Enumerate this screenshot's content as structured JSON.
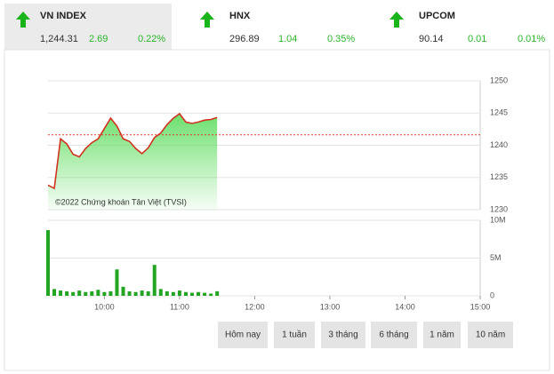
{
  "tabs": [
    {
      "name": "VN INDEX",
      "value": "1,244.31",
      "change": "2.69",
      "percent": "0.22%"
    },
    {
      "name": "HNX",
      "value": "296.89",
      "change": "1.04",
      "percent": "0.35%"
    },
    {
      "name": "UPCOM",
      "value": "90.14",
      "change": "0.01",
      "percent": "0.01%"
    }
  ],
  "chart_data": [
    {
      "type": "area",
      "annotation": "©2022 Chứng khoán Tân Việt (TVSI)",
      "x": [
        555,
        560,
        565,
        570,
        575,
        580,
        585,
        590,
        595,
        600,
        605,
        610,
        615,
        620,
        625,
        630,
        635,
        640,
        645,
        650,
        655,
        660,
        665,
        670,
        675,
        680,
        685,
        690
      ],
      "series": [
        {
          "color": "#d0321e",
          "fill": "#5cdc5c",
          "values": [
            1233.8,
            1233.3,
            1241.0,
            1240.2,
            1238.6,
            1238.2,
            1239.5,
            1240.4,
            1241.0,
            1242.6,
            1244.2,
            1243.0,
            1241.0,
            1240.6,
            1239.5,
            1238.7,
            1239.6,
            1241.2,
            1241.9,
            1243.2,
            1244.2,
            1244.9,
            1243.6,
            1243.4,
            1243.6,
            1243.9,
            1244.0,
            1244.31
          ]
        }
      ],
      "reference_line": 1241.62,
      "reference_color": "#e03a2a",
      "xlim": [
        555,
        900
      ],
      "ylim": [
        1230,
        1250
      ],
      "yticks": [
        1230,
        1235,
        1240,
        1245,
        1250
      ],
      "grid": true
    },
    {
      "type": "bar",
      "color": "#23a523",
      "x": [
        555,
        560,
        565,
        570,
        575,
        580,
        585,
        590,
        595,
        600,
        605,
        610,
        615,
        620,
        625,
        630,
        635,
        640,
        645,
        650,
        655,
        660,
        665,
        670,
        675,
        680,
        685,
        690
      ],
      "values": [
        8700000,
        900000,
        700000,
        600000,
        500000,
        700000,
        500000,
        600000,
        800000,
        500000,
        600000,
        3500000,
        1200000,
        600000,
        500000,
        700000,
        600000,
        4100000,
        900000,
        600000,
        500000,
        700000,
        500000,
        400000,
        500000,
        400000,
        300000,
        600000
      ],
      "xlim": [
        555,
        900
      ],
      "ylim": [
        0,
        10000000
      ],
      "yticks": [
        0,
        {
          "value": 5000000,
          "label": "5M"
        },
        {
          "value": 10000000,
          "label": "10M"
        }
      ],
      "xticks": [
        {
          "value": 600,
          "label": "10:00"
        },
        {
          "value": 660,
          "label": "11:00"
        },
        {
          "value": 720,
          "label": "12:00"
        },
        {
          "value": 780,
          "label": "13:00"
        },
        {
          "value": 840,
          "label": "14:00"
        },
        {
          "value": 900,
          "label": "15:00"
        }
      ],
      "grid": true
    }
  ],
  "buttons": [
    "Hôm nay",
    "1 tuần",
    "3 tháng",
    "6 tháng",
    "1 năm",
    "10 năm"
  ]
}
